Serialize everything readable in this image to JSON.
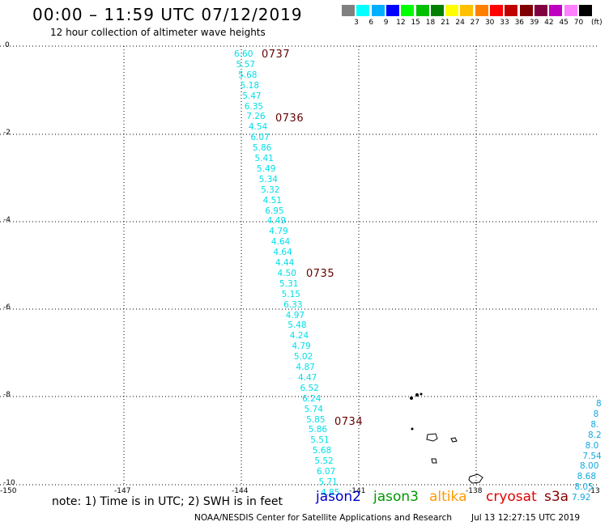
{
  "header": {
    "title": "00:00 – 11:59 UTC 07/12/2019",
    "subtitle": "12 hour collection of altimeter wave heights"
  },
  "legend": {
    "unit": "(ft)",
    "colors": [
      "#808080",
      "#00ffff",
      "#00b0ff",
      "#0000ff",
      "#00ff00",
      "#00c000",
      "#008000",
      "#ffff00",
      "#ffc000",
      "#ff8000",
      "#ff0000",
      "#c00000",
      "#800000",
      "#800040",
      "#c000c0",
      "#ff80ff",
      "#000000"
    ],
    "labels": [
      "3",
      "6",
      "9",
      "12",
      "15",
      "18",
      "21",
      "24",
      "27",
      "30",
      "33",
      "36",
      "39",
      "42",
      "45",
      "70"
    ]
  },
  "axes": {
    "y_labels": [
      "0",
      "-2",
      "-4",
      "-6",
      "-8",
      "-10"
    ],
    "x_labels": [
      "-150",
      "-147",
      "-144",
      "-141",
      "-138",
      "-13"
    ]
  },
  "track_cyan": {
    "color": "#00e0e8",
    "values": [
      "6.60",
      "5.57",
      "5.68",
      "5.18",
      "5.47",
      "6.35",
      "7.26",
      "4.54",
      "6.07",
      "5.86",
      "5.41",
      "5.49",
      "5.34",
      "5.32",
      "4.51",
      "6.95",
      "4.49",
      "4.79",
      "4.64",
      "4.64",
      "4.44",
      "4.50",
      "5.31",
      "5.15",
      "6.33",
      "4.97",
      "5.48",
      "4.24",
      "4.79",
      "5.02",
      "4.87",
      "4.47",
      "6.52",
      "6.24",
      "5.74",
      "5.85",
      "5.86",
      "5.51",
      "5.68",
      "5.52",
      "6.07",
      "5.71",
      "4.85"
    ]
  },
  "track_blue": {
    "color": "#10a8e0",
    "values": [
      "8",
      "8",
      "8.",
      "8.2",
      "8.0",
      "7.54",
      "8.00",
      "8.68",
      "8.05",
      "7.92"
    ]
  },
  "pass_times": [
    "0737",
    "0736",
    "0735",
    "0734"
  ],
  "note": "note: 1) Time is in UTC; 2) SWH is in feet",
  "satellites": [
    {
      "name": "jason2",
      "color": "#0000cc"
    },
    {
      "name": "jason3",
      "color": "#009900"
    },
    {
      "name": "altika",
      "color": "#ff9900"
    },
    {
      "name": "cryosat",
      "color": "#e00000"
    },
    {
      "name": "s3a",
      "color": "#880000"
    }
  ],
  "footer": {
    "left": "NOAA/NESDIS Center for Satellite Applications and Research",
    "right": "Jul 13 12:27:15 UTC 2019"
  }
}
